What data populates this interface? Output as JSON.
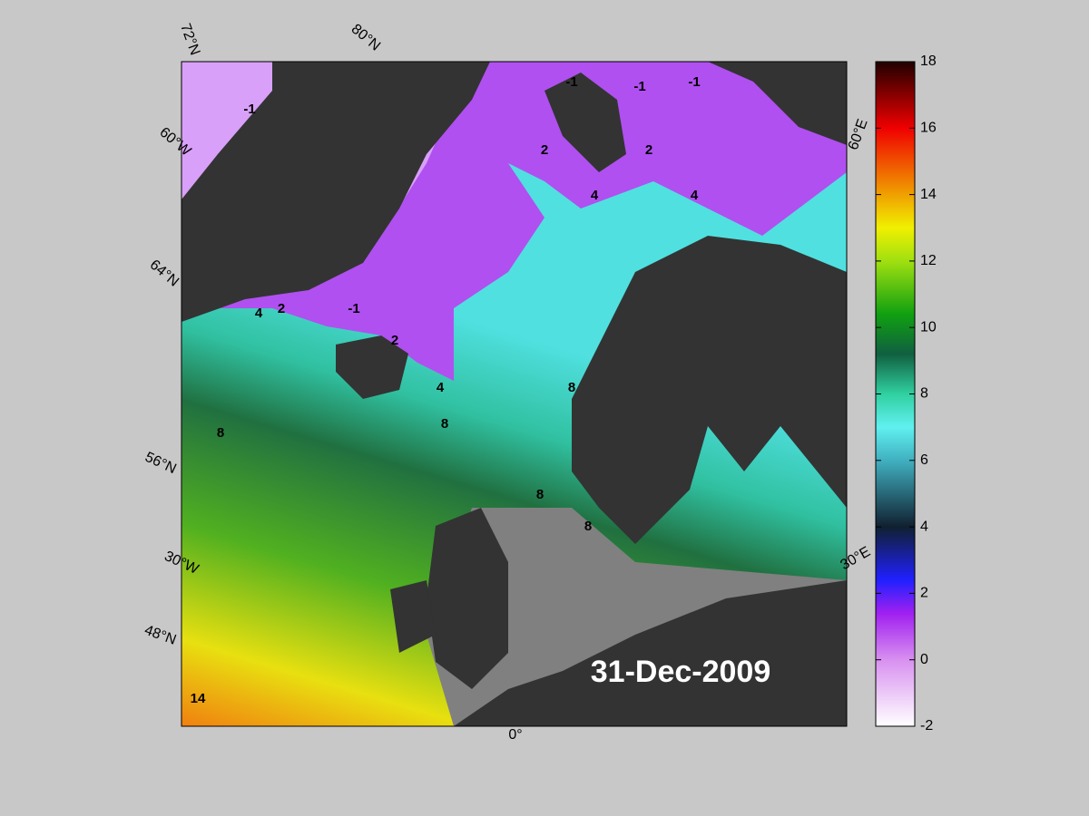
{
  "map": {
    "date_label": "31-Dec-2009",
    "graticule_labels": [
      "72°N",
      "80°N",
      "60°W",
      "64°N",
      "56°N",
      "30°W",
      "48°N",
      "0°",
      "30°E",
      "60°E"
    ],
    "contour_labels": [
      -1,
      2,
      4,
      8,
      14
    ]
  },
  "colorbar": {
    "lim": [
      -2,
      18
    ],
    "ticks": [
      -2,
      0,
      2,
      4,
      6,
      8,
      10,
      12,
      14,
      16,
      18
    ]
  }
}
